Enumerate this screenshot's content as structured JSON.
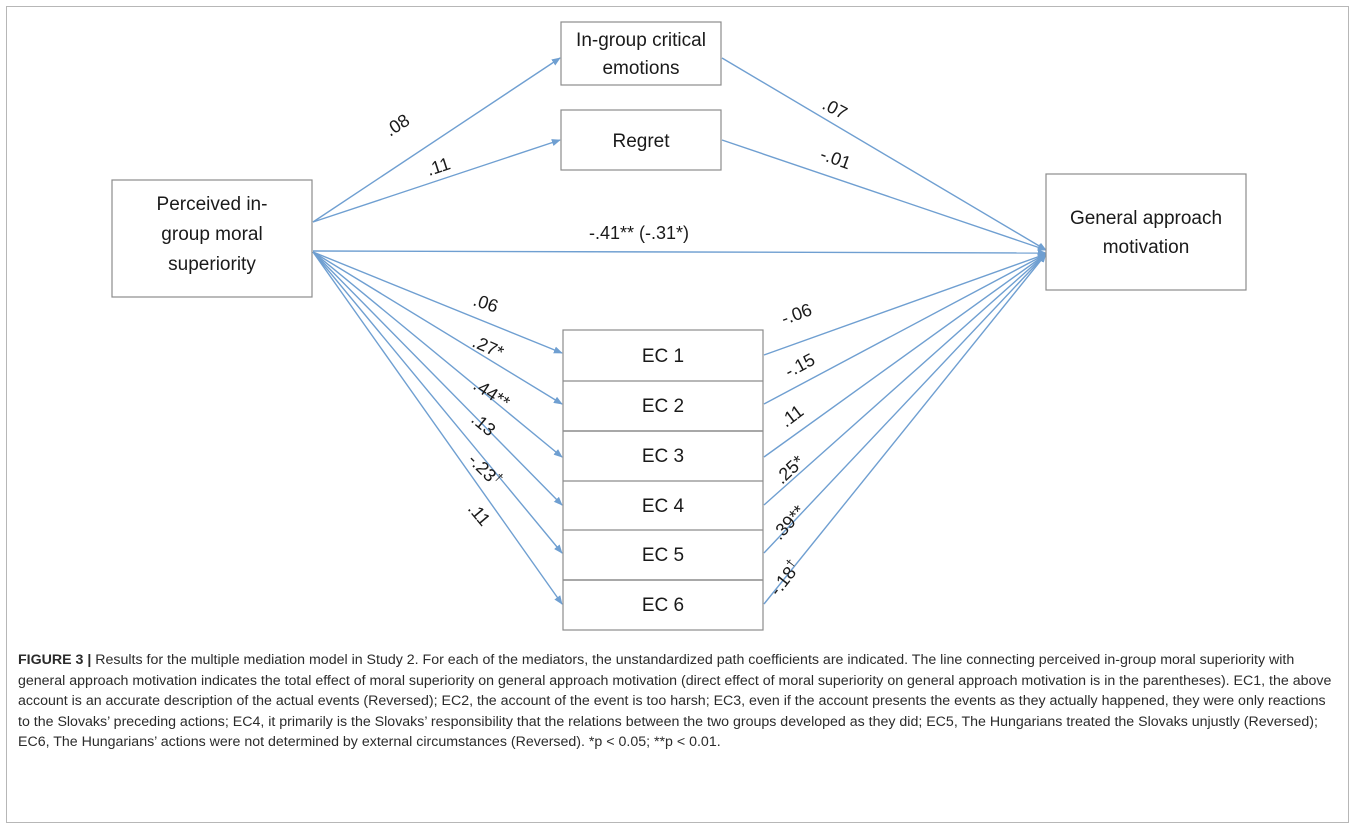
{
  "nodes": {
    "predictor": [
      "Perceived in-",
      "group moral",
      "superiority"
    ],
    "outcome": [
      "General approach",
      "motivation"
    ],
    "critical": [
      "In-group critical",
      "emotions"
    ],
    "regret": "Regret",
    "ec": [
      "EC 1",
      "EC 2",
      "EC 3",
      "EC 4",
      "EC 5",
      "EC 6"
    ]
  },
  "coefficients": {
    "to_critical": ".08",
    "to_regret": ".11",
    "critical_to_outcome": ".07",
    "regret_to_outcome": "-.01",
    "direct": "-.41** (-.31*)",
    "to_ec": [
      ".06",
      ".27*",
      ".44**",
      ".13",
      "-.23",
      ".11"
    ],
    "to_ec5_dagger": "†",
    "ec_to_outcome": [
      "-.06",
      "-.15",
      ".11",
      ".25*",
      ".39**",
      "-.18"
    ],
    "ec6_out_dagger": "†"
  },
  "caption": {
    "label": "FIGURE 3 |",
    "text": " Results for the multiple mediation model in Study 2. For each of the mediators, the unstandardized path coefficients are indicated. The line connecting perceived in-group moral superiority with general approach motivation indicates the total effect of moral superiority on general approach motivation (direct effect of moral superiority on general approach motivation is in the parentheses). EC1, the above account is an accurate description of the actual events (Reversed); EC2, the account of the event is too harsh; EC3, even if the account presents the events as they actually happened, they were only reactions to the Slovaks’ preceding actions; EC4, it primarily is the Slovaks’ responsibility that the relations between the two groups developed as they did; EC5, The Hungarians treated the Slovaks unjustly (Reversed); EC6, The Hungarians’ actions were not determined by external circumstances (Reversed). *p < 0.05; **p < 0.01."
  },
  "colors": {
    "arrow": "#6f9fd1",
    "box_border": "#8c8c8c"
  }
}
